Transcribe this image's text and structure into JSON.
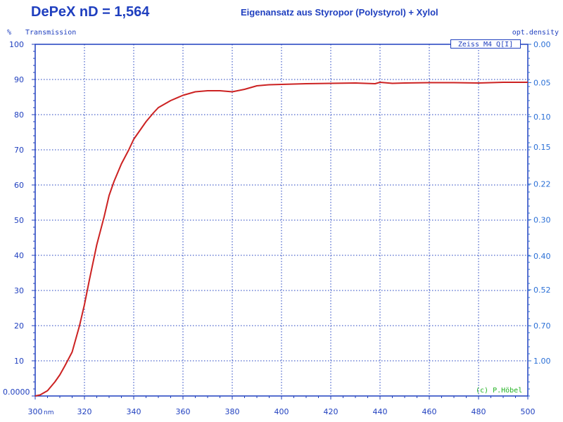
{
  "header": {
    "title": "DePeX   nD = 1,564",
    "subtitle": "Eigenansatz aus Styropor (Polystyrol)  + Xylol"
  },
  "axes": {
    "left_unit": "%",
    "left_label": "Transmission",
    "right_label": "opt.density",
    "x_unit": "nm"
  },
  "legend_text": "Zeiss M4 Q[I]",
  "copyright": "(c) P.Höbel",
  "colors": {
    "axis": "#1f3fbf",
    "grid": "#1f3fbf",
    "curve": "#cc2222",
    "right_axis": "#2a6fd6",
    "copyright": "#22b222"
  },
  "chart_data": {
    "type": "line",
    "title": "DePeX   nD = 1,564",
    "subtitle": "Eigenansatz aus Styropor (Polystyrol)  + Xylol",
    "xlabel": "nm",
    "ylabel": "Transmission",
    "ylabel_right": "opt.density",
    "xlim": [
      300,
      500
    ],
    "ylim": [
      0,
      100
    ],
    "x_ticks": [
      "300",
      "320",
      "340",
      "360",
      "380",
      "400",
      "420",
      "440",
      "460",
      "480",
      "500"
    ],
    "y_ticks_left": [
      "0.0000",
      "10",
      "20",
      "30",
      "40",
      "50",
      "60",
      "70",
      "80",
      "90",
      "100"
    ],
    "y_ticks_right": [
      "0.00",
      "0.05",
      "0.10",
      "0.15",
      "0.22",
      "0.30",
      "0.40",
      "0.52",
      "0.70",
      "1.00"
    ],
    "grid": true,
    "series": [
      {
        "x": [
          300,
          302,
          305,
          308,
          310,
          312,
          315,
          318,
          320,
          322,
          325,
          328,
          330,
          332,
          335,
          338,
          340,
          342,
          345,
          348,
          350,
          355,
          360,
          365,
          370,
          375,
          380,
          385,
          390,
          395,
          400,
          410,
          420,
          430,
          438,
          440,
          445,
          450,
          460,
          470,
          480,
          490,
          500
        ],
        "y": [
          0,
          0.3,
          1.5,
          4,
          6,
          8.5,
          12.5,
          20,
          26,
          33,
          43,
          51,
          57,
          61,
          66,
          70,
          73,
          75,
          78,
          80.5,
          82,
          84,
          85.5,
          86.5,
          86.8,
          86.8,
          86.5,
          87.2,
          88.2,
          88.5,
          88.6,
          88.8,
          88.9,
          89,
          88.8,
          89.2,
          88.9,
          89,
          89.1,
          89.1,
          89,
          89.2,
          89.2
        ]
      }
    ]
  }
}
